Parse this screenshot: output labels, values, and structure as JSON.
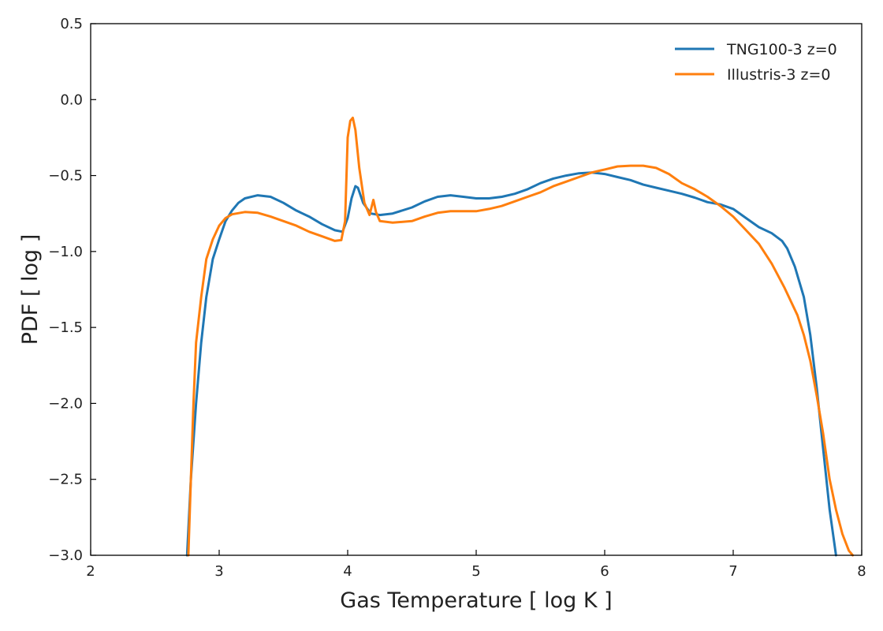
{
  "chart_data": {
    "type": "line",
    "title": "",
    "xlabel": "Gas Temperature [ log K ]",
    "ylabel": "PDF [ log ]",
    "xlim": [
      2,
      8
    ],
    "ylim": [
      -3.0,
      0.5
    ],
    "xticks": [
      2,
      3,
      4,
      5,
      6,
      7,
      8
    ],
    "xtick_labels": [
      "2",
      "3",
      "4",
      "5",
      "6",
      "7",
      "8"
    ],
    "yticks": [
      -3.0,
      -2.5,
      -2.0,
      -1.5,
      -1.0,
      -0.5,
      0.0,
      0.5
    ],
    "ytick_labels": [
      "−3.0",
      "−2.5",
      "−2.0",
      "−1.5",
      "−1.0",
      "−0.5",
      "0.0",
      "0.5"
    ],
    "grid": false,
    "legend_position": "top-right",
    "series": [
      {
        "name": "TNG100-3 z=0",
        "color": "#1f77b4",
        "points": [
          [
            2.75,
            -3.0
          ],
          [
            2.78,
            -2.5
          ],
          [
            2.82,
            -2.0
          ],
          [
            2.86,
            -1.6
          ],
          [
            2.9,
            -1.3
          ],
          [
            2.95,
            -1.05
          ],
          [
            3.0,
            -0.92
          ],
          [
            3.05,
            -0.8
          ],
          [
            3.1,
            -0.73
          ],
          [
            3.15,
            -0.68
          ],
          [
            3.2,
            -0.65
          ],
          [
            3.3,
            -0.63
          ],
          [
            3.4,
            -0.64
          ],
          [
            3.5,
            -0.68
          ],
          [
            3.6,
            -0.73
          ],
          [
            3.7,
            -0.77
          ],
          [
            3.8,
            -0.82
          ],
          [
            3.9,
            -0.86
          ],
          [
            3.96,
            -0.87
          ],
          [
            4.0,
            -0.78
          ],
          [
            4.03,
            -0.65
          ],
          [
            4.06,
            -0.57
          ],
          [
            4.08,
            -0.58
          ],
          [
            4.12,
            -0.68
          ],
          [
            4.18,
            -0.75
          ],
          [
            4.25,
            -0.76
          ],
          [
            4.35,
            -0.75
          ],
          [
            4.5,
            -0.71
          ],
          [
            4.6,
            -0.67
          ],
          [
            4.7,
            -0.64
          ],
          [
            4.8,
            -0.63
          ],
          [
            4.9,
            -0.64
          ],
          [
            5.0,
            -0.65
          ],
          [
            5.1,
            -0.65
          ],
          [
            5.2,
            -0.64
          ],
          [
            5.3,
            -0.62
          ],
          [
            5.4,
            -0.59
          ],
          [
            5.5,
            -0.55
          ],
          [
            5.6,
            -0.52
          ],
          [
            5.7,
            -0.5
          ],
          [
            5.8,
            -0.485
          ],
          [
            5.9,
            -0.48
          ],
          [
            6.0,
            -0.49
          ],
          [
            6.1,
            -0.51
          ],
          [
            6.2,
            -0.53
          ],
          [
            6.3,
            -0.56
          ],
          [
            6.4,
            -0.58
          ],
          [
            6.5,
            -0.6
          ],
          [
            6.6,
            -0.62
          ],
          [
            6.7,
            -0.645
          ],
          [
            6.8,
            -0.675
          ],
          [
            6.9,
            -0.69
          ],
          [
            7.0,
            -0.72
          ],
          [
            7.1,
            -0.78
          ],
          [
            7.2,
            -0.84
          ],
          [
            7.3,
            -0.88
          ],
          [
            7.38,
            -0.93
          ],
          [
            7.42,
            -0.98
          ],
          [
            7.48,
            -1.1
          ],
          [
            7.55,
            -1.3
          ],
          [
            7.6,
            -1.55
          ],
          [
            7.65,
            -1.9
          ],
          [
            7.7,
            -2.3
          ],
          [
            7.75,
            -2.7
          ],
          [
            7.8,
            -3.0
          ]
        ]
      },
      {
        "name": "Illustris-3 z=0",
        "color": "#ff7f0e",
        "points": [
          [
            2.76,
            -3.0
          ],
          [
            2.78,
            -2.5
          ],
          [
            2.8,
            -2.0
          ],
          [
            2.82,
            -1.6
          ],
          [
            2.86,
            -1.3
          ],
          [
            2.9,
            -1.05
          ],
          [
            2.95,
            -0.92
          ],
          [
            3.0,
            -0.83
          ],
          [
            3.05,
            -0.78
          ],
          [
            3.1,
            -0.755
          ],
          [
            3.2,
            -0.74
          ],
          [
            3.3,
            -0.745
          ],
          [
            3.4,
            -0.77
          ],
          [
            3.5,
            -0.8
          ],
          [
            3.6,
            -0.83
          ],
          [
            3.7,
            -0.87
          ],
          [
            3.8,
            -0.9
          ],
          [
            3.9,
            -0.93
          ],
          [
            3.95,
            -0.925
          ],
          [
            3.98,
            -0.8
          ],
          [
            4.0,
            -0.25
          ],
          [
            4.02,
            -0.14
          ],
          [
            4.04,
            -0.12
          ],
          [
            4.06,
            -0.2
          ],
          [
            4.09,
            -0.45
          ],
          [
            4.13,
            -0.68
          ],
          [
            4.17,
            -0.76
          ],
          [
            4.2,
            -0.66
          ],
          [
            4.22,
            -0.74
          ],
          [
            4.25,
            -0.8
          ],
          [
            4.35,
            -0.81
          ],
          [
            4.5,
            -0.8
          ],
          [
            4.6,
            -0.77
          ],
          [
            4.7,
            -0.745
          ],
          [
            4.8,
            -0.735
          ],
          [
            4.9,
            -0.735
          ],
          [
            5.0,
            -0.735
          ],
          [
            5.1,
            -0.72
          ],
          [
            5.2,
            -0.7
          ],
          [
            5.3,
            -0.67
          ],
          [
            5.4,
            -0.64
          ],
          [
            5.5,
            -0.61
          ],
          [
            5.6,
            -0.57
          ],
          [
            5.7,
            -0.54
          ],
          [
            5.8,
            -0.51
          ],
          [
            5.9,
            -0.48
          ],
          [
            6.0,
            -0.46
          ],
          [
            6.1,
            -0.44
          ],
          [
            6.2,
            -0.435
          ],
          [
            6.3,
            -0.435
          ],
          [
            6.4,
            -0.45
          ],
          [
            6.5,
            -0.49
          ],
          [
            6.6,
            -0.55
          ],
          [
            6.7,
            -0.59
          ],
          [
            6.8,
            -0.64
          ],
          [
            6.9,
            -0.7
          ],
          [
            7.0,
            -0.77
          ],
          [
            7.1,
            -0.86
          ],
          [
            7.2,
            -0.95
          ],
          [
            7.3,
            -1.08
          ],
          [
            7.4,
            -1.24
          ],
          [
            7.5,
            -1.42
          ],
          [
            7.55,
            -1.55
          ],
          [
            7.6,
            -1.72
          ],
          [
            7.65,
            -1.95
          ],
          [
            7.7,
            -2.2
          ],
          [
            7.75,
            -2.5
          ],
          [
            7.8,
            -2.7
          ],
          [
            7.85,
            -2.86
          ],
          [
            7.9,
            -2.97
          ],
          [
            7.93,
            -3.0
          ]
        ]
      }
    ]
  }
}
